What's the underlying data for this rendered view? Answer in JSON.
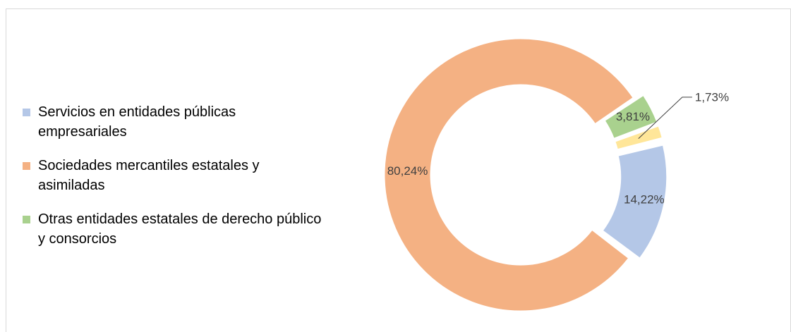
{
  "chart_data": {
    "type": "donut",
    "categories": [
      "Servicios en entidades públicas empresariales",
      "Sociedades mercantiles estatales y asimiladas",
      "Otras entidades estatales de derecho público y consorcios",
      null
    ],
    "values": [
      14.22,
      80.24,
      3.81,
      1.73
    ],
    "value_labels": [
      "14,22%",
      "80,24%",
      "3,81%",
      "1,73%"
    ],
    "colors": [
      "#b4c7e7",
      "#f4b183",
      "#a9d18e",
      "#ffe699"
    ],
    "legend": "left"
  }
}
